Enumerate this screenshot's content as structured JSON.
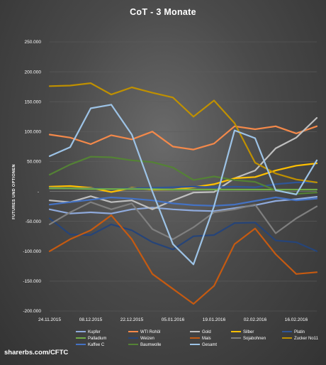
{
  "source_text": "sharerbs.com/CFTC",
  "chart_data": {
    "type": "line",
    "title": "CoT - 3 Monate",
    "ylabel": "FUTURES UND OPTIONEN",
    "xlabel": "",
    "ylim": [
      -200000,
      250000
    ],
    "yticks": [
      {
        "value": 250000,
        "label": "250.000"
      },
      {
        "value": 200000,
        "label": "200.000"
      },
      {
        "value": 150000,
        "label": "150.000"
      },
      {
        "value": 100000,
        "label": "100.000"
      },
      {
        "value": 50000,
        "label": "50.000"
      },
      {
        "value": 0,
        "label": "-"
      },
      {
        "value": -50000,
        "label": "-50.000"
      },
      {
        "value": -100000,
        "label": "-100.000"
      },
      {
        "value": -150000,
        "label": "-150.000"
      },
      {
        "value": -200000,
        "label": "-200.000"
      }
    ],
    "categories": [
      "24.11.2015",
      "01.12.2015",
      "08.12.2015",
      "15.12.2015",
      "22.12.2015",
      "29.12.2015",
      "05.01.2016",
      "12.01.2016",
      "19.01.2016",
      "26.01.2016",
      "02.02.2016",
      "09.02.2016",
      "16.02.2016",
      "23.02.2016"
    ],
    "x_tick_labels": [
      "24.11.2015",
      "08.12.2015",
      "22.12.2015",
      "05.01.2016",
      "19.01.2016",
      "02.02.2016",
      "16.02.2016"
    ],
    "legend_position": "bottom",
    "series": [
      {
        "name": "Kupfer",
        "color": "#8faadc",
        "values": [
          -30000,
          -37000,
          -35000,
          -37000,
          -30000,
          -27000,
          -30000,
          -32000,
          -33000,
          -28000,
          -23000,
          -16000,
          -13000,
          -9000
        ]
      },
      {
        "name": "WTI Rohöl",
        "color": "#f4894a",
        "values": [
          95000,
          90000,
          79000,
          94000,
          87000,
          100000,
          75000,
          70000,
          80000,
          109000,
          104000,
          109000,
          97000,
          109000
        ]
      },
      {
        "name": "Gold",
        "color": "#bfbfbf",
        "values": [
          -15000,
          -18000,
          -8000,
          -18000,
          -15000,
          -30000,
          -15000,
          -2000,
          -1000,
          22000,
          35000,
          72000,
          90000,
          123000
        ]
      },
      {
        "name": "Silber",
        "color": "#ffc000",
        "values": [
          8000,
          9000,
          6000,
          -1000,
          6000,
          3000,
          3000,
          7000,
          12000,
          22000,
          24000,
          35000,
          43000,
          47000
        ]
      },
      {
        "name": "Platin",
        "color": "#2f5597",
        "values": [
          6000,
          5000,
          5000,
          4000,
          5000,
          6000,
          7000,
          8000,
          7000,
          8000,
          7000,
          12000,
          15000,
          15000
        ]
      },
      {
        "name": "Palladium",
        "color": "#70ad47",
        "values": [
          5000,
          5000,
          4000,
          4000,
          4000,
          4000,
          3000,
          3000,
          3000,
          3000,
          3000,
          3000,
          3000,
          3000
        ]
      },
      {
        "name": "Weizen",
        "color": "#264478",
        "values": [
          -45000,
          -72000,
          -73000,
          -55000,
          -65000,
          -85000,
          -97000,
          -75000,
          -73000,
          -53000,
          -52000,
          -82000,
          -85000,
          -100000
        ]
      },
      {
        "name": "Mais",
        "color": "#c55a11",
        "values": [
          -100000,
          -80000,
          -65000,
          -40000,
          -80000,
          -138000,
          -163000,
          -188000,
          -158000,
          -88000,
          -62000,
          -105000,
          -138000,
          -135000
        ]
      },
      {
        "name": "Sojabohnen",
        "color": "#7f7f7f",
        "values": [
          -55000,
          -35000,
          -18000,
          -30000,
          -20000,
          -63000,
          -80000,
          -60000,
          -35000,
          -30000,
          -22000,
          -70000,
          -45000,
          -25000
        ]
      },
      {
        "name": "Zucker No11",
        "color": "#bf9000",
        "values": [
          176000,
          177000,
          181000,
          162000,
          174000,
          165000,
          157000,
          125000,
          152000,
          114000,
          48000,
          30000,
          20000,
          15000
        ]
      },
      {
        "name": "Kaffee C",
        "color": "#4472c4",
        "values": [
          -22000,
          -18000,
          -14000,
          -10000,
          -12000,
          -15000,
          -20000,
          -23000,
          -24000,
          -22000,
          -16000,
          -10000,
          -15000,
          -12000
        ]
      },
      {
        "name": "Baumwolle",
        "color": "#548235",
        "values": [
          28000,
          45000,
          58000,
          57000,
          52000,
          49000,
          40000,
          19000,
          25000,
          19000,
          16000,
          2000,
          -4000,
          -2000
        ]
      },
      {
        "name": "Gesamt",
        "color": "#9dc3e6",
        "values": [
          59000,
          74000,
          139000,
          145000,
          95000,
          0,
          -88000,
          -122000,
          -25000,
          102000,
          89000,
          2000,
          -5000,
          52000
        ]
      }
    ]
  }
}
